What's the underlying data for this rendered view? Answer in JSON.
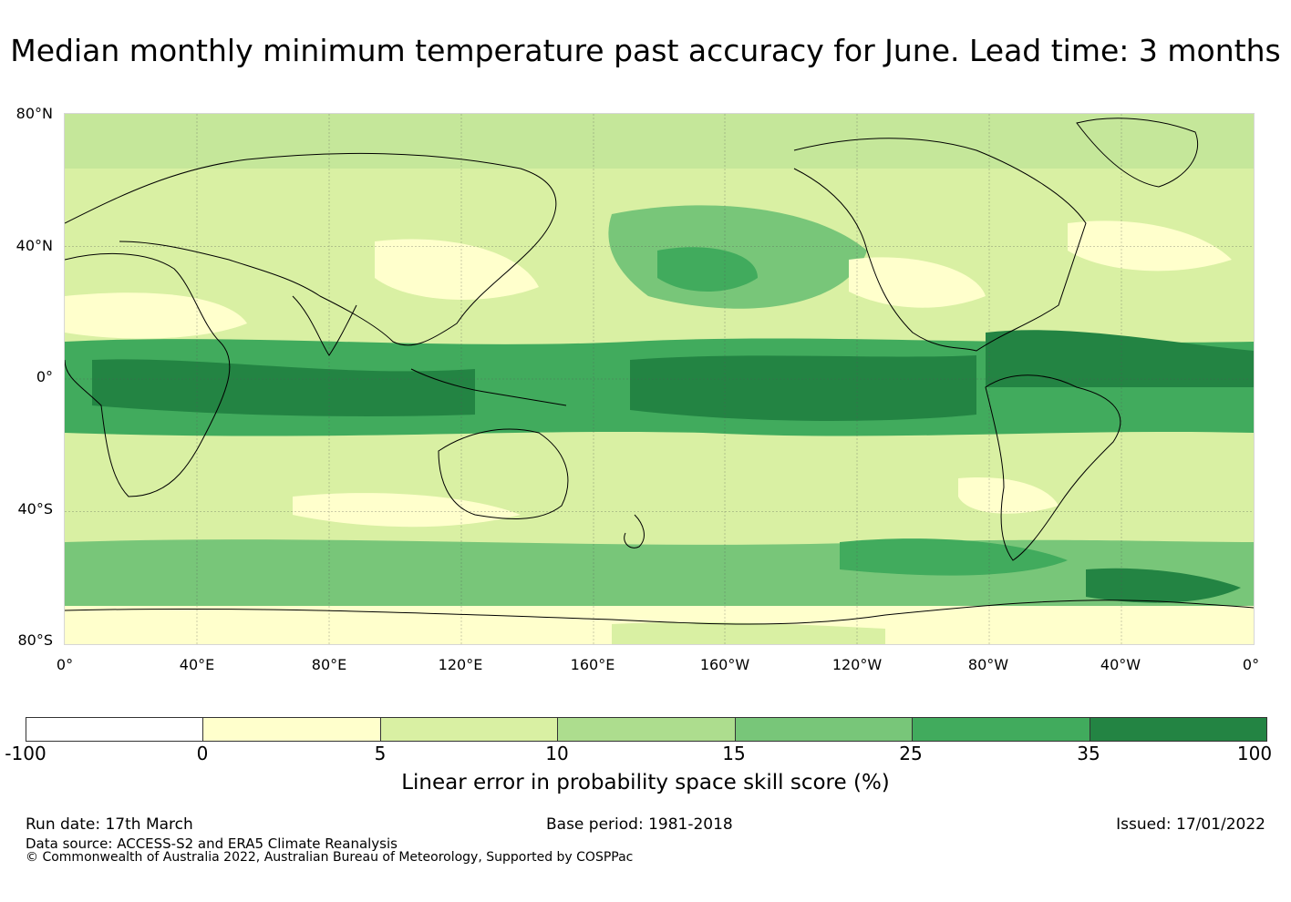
{
  "title": "Median monthly minimum temperature past accuracy for June. Lead time: 3 months",
  "map": {
    "lat_labels": [
      "80°N",
      "40°N",
      "0°",
      "40°S",
      "80°S"
    ],
    "lon_labels": [
      "0°",
      "40°E",
      "80°E",
      "120°E",
      "160°E",
      "160°W",
      "120°W",
      "80°W",
      "40°W",
      "0°"
    ],
    "gridlines": true,
    "projection": "equirectangular, 0° to 360°, 80°S to 80°N"
  },
  "colorbar": {
    "label": "Linear error in probability space skill score (%)",
    "ticks": [
      "-100",
      "0",
      "5",
      "10",
      "15",
      "25",
      "35",
      "100"
    ],
    "colors": [
      "#ffffff",
      "#ffffcc",
      "#d9f0a3",
      "#addd8e",
      "#78c679",
      "#41ab5d",
      "#238443"
    ]
  },
  "footer": {
    "run_date": "Run date: 17th March",
    "base_period": "Base period: 1981-2018",
    "issued": "Issued: 17/01/2022",
    "data_source": "Data source: ACCESS-S2 and ERA5 Climate Reanalysis",
    "copyright": "© Commonwealth of Australia 2022, Australian Bureau of Meteorology, Supported by COSPPac"
  }
}
